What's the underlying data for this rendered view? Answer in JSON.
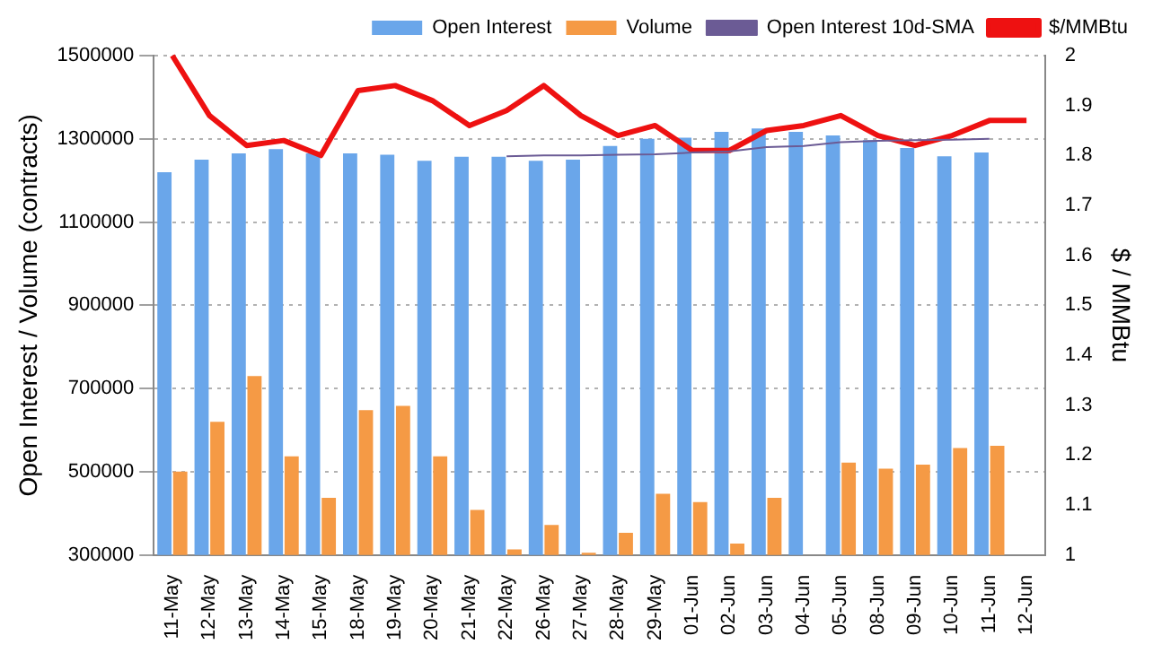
{
  "chart_data": {
    "type": "bar",
    "categories": [
      "11-May",
      "12-May",
      "13-May",
      "14-May",
      "15-May",
      "18-May",
      "19-May",
      "20-May",
      "21-May",
      "22-May",
      "26-May",
      "27-May",
      "28-May",
      "29-May",
      "01-Jun",
      "02-Jun",
      "03-Jun",
      "04-Jun",
      "05-Jun",
      "08-Jun",
      "09-Jun",
      "10-Jun",
      "11-Jun",
      "12-Jun"
    ],
    "series": [
      {
        "name": "Open Interest",
        "color": "#6aa6ea",
        "values": [
          1220000,
          1250000,
          1265000,
          1275000,
          1265000,
          1265000,
          1262000,
          1247000,
          1257000,
          1257000,
          1247000,
          1250000,
          1283000,
          1300000,
          1303000,
          1317000,
          1325000,
          1317000,
          1308000,
          1297000,
          1278000,
          1258000,
          1267000,
          null
        ]
      },
      {
        "name": "Volume",
        "color": "#f59a45",
        "values": [
          500000,
          620000,
          730000,
          537000,
          437000,
          648000,
          658000,
          537000,
          408000,
          313000,
          372000,
          305000,
          353000,
          447000,
          427000,
          327000,
          437000,
          null,
          522000,
          507000,
          517000,
          557000,
          562000,
          null
        ]
      },
      {
        "name": "Open Interest 10d-SMA",
        "type": "line",
        "color": "#6b5b95",
        "values": [
          null,
          null,
          null,
          null,
          null,
          null,
          null,
          null,
          null,
          1258000,
          1260000,
          1260000,
          1262000,
          1263000,
          1267000,
          1270000,
          1280000,
          1283000,
          1292000,
          1295000,
          1297000,
          1298000,
          1300000,
          null
        ]
      },
      {
        "name": "$/MMBtu",
        "type": "line",
        "axis": "y2",
        "color": "#ee1111",
        "values": [
          2.0,
          1.88,
          1.82,
          1.83,
          1.8,
          1.93,
          1.94,
          1.91,
          1.86,
          1.89,
          1.94,
          1.88,
          1.84,
          1.86,
          1.81,
          1.81,
          1.85,
          1.86,
          1.88,
          1.84,
          1.82,
          1.84,
          1.87,
          1.87
        ]
      }
    ],
    "ylabel": "Open Interest / Volume (contracts)",
    "y2label": "$ / MMBtu",
    "ylim": [
      300000,
      1500000
    ],
    "yticks": [
      300000,
      500000,
      700000,
      900000,
      1100000,
      1300000,
      1500000
    ],
    "y2lim": [
      1,
      2
    ],
    "y2ticks": [
      1,
      1.1,
      1.2,
      1.3,
      1.4,
      1.5,
      1.6,
      1.7,
      1.8,
      1.9,
      2
    ],
    "grid": "y",
    "legend": "top right",
    "marker": "none"
  }
}
